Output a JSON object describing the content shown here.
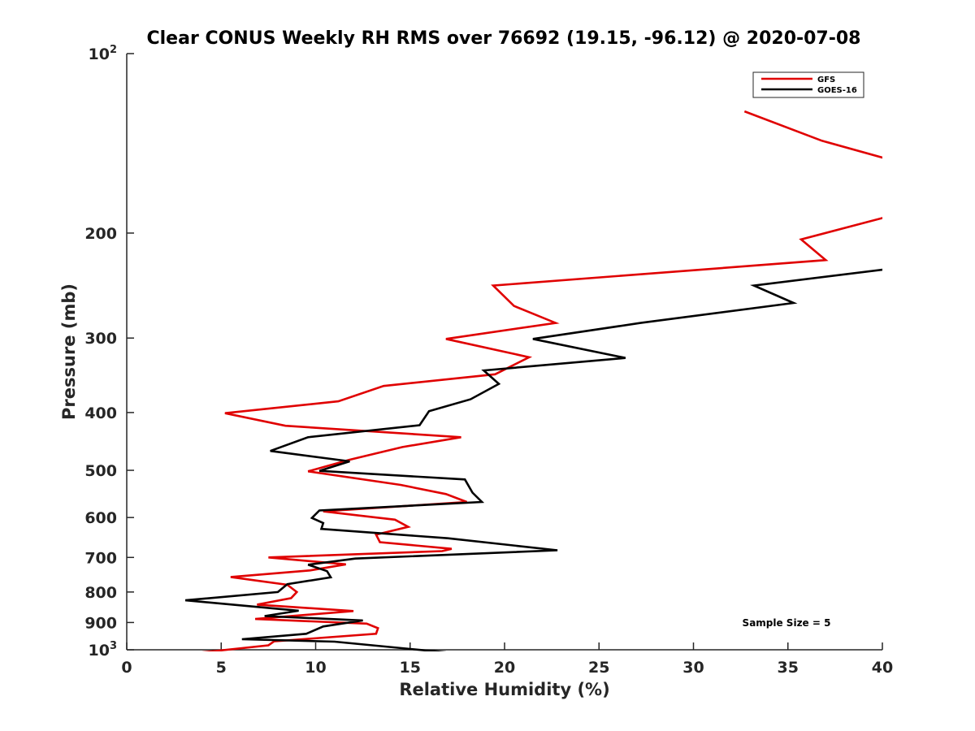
{
  "chart_data": {
    "type": "line",
    "title": "Clear CONUS Weekly RH RMS over 76692 (19.15, -96.12) @ 2020-07-08",
    "xlabel": "Relative Humidity (%)",
    "ylabel": "Pressure (mb)",
    "xlim": [
      0,
      40
    ],
    "ylim": [
      100,
      1000
    ],
    "yscale": "log",
    "y_direction": "reverse",
    "x_ticks": [
      0,
      5,
      10,
      15,
      20,
      25,
      30,
      35,
      40
    ],
    "x_tick_labels": [
      "0",
      "5",
      "10",
      "15",
      "20",
      "25",
      "30",
      "35",
      "40"
    ],
    "y_ticks": [
      100,
      200,
      300,
      400,
      500,
      600,
      700,
      800,
      900,
      1000
    ],
    "y_tick_labels": [
      {
        "base": "10",
        "exp": "2"
      },
      {
        "base": "200",
        "exp": ""
      },
      {
        "base": "300",
        "exp": ""
      },
      {
        "base": "400",
        "exp": ""
      },
      {
        "base": "500",
        "exp": ""
      },
      {
        "base": "600",
        "exp": ""
      },
      {
        "base": "700",
        "exp": ""
      },
      {
        "base": "800",
        "exp": ""
      },
      {
        "base": "900",
        "exp": ""
      },
      {
        "base": "10",
        "exp": "3"
      }
    ],
    "legend_position": "top-right",
    "annotation": "Sample Size = 5",
    "series": [
      {
        "name": "GFS",
        "color": "#e00000",
        "points": [
          [
            32.7,
            125
          ],
          [
            36.8,
            140
          ],
          [
            40.2,
            150
          ],
          [
            40.2,
            188
          ],
          [
            35.7,
            205
          ],
          [
            37.0,
            222
          ],
          [
            19.4,
            245
          ],
          [
            20.5,
            265
          ],
          [
            22.7,
            283
          ],
          [
            16.9,
            301
          ],
          [
            21.3,
            323
          ],
          [
            19.5,
            345
          ],
          [
            13.6,
            361
          ],
          [
            11.2,
            383
          ],
          [
            5.2,
            401
          ],
          [
            8.4,
            421
          ],
          [
            17.7,
            440
          ],
          [
            14.6,
            457
          ],
          [
            11.8,
            480
          ],
          [
            9.6,
            502
          ],
          [
            14.5,
            529
          ],
          [
            16.9,
            548
          ],
          [
            18.0,
            565
          ],
          [
            10.4,
            586
          ],
          [
            14.2,
            605
          ],
          [
            14.9,
            622
          ],
          [
            13.2,
            641
          ],
          [
            13.4,
            660
          ],
          [
            17.2,
            677
          ],
          [
            16.7,
            683
          ],
          [
            7.5,
            700
          ],
          [
            11.6,
            719
          ],
          [
            9.7,
            736
          ],
          [
            5.5,
            755
          ],
          [
            8.5,
            778
          ],
          [
            9.0,
            800
          ],
          [
            8.7,
            819
          ],
          [
            6.9,
            840
          ],
          [
            12.0,
            861
          ],
          [
            6.8,
            888
          ],
          [
            12.7,
            904
          ],
          [
            13.3,
            920
          ],
          [
            13.2,
            940
          ],
          [
            7.8,
            968
          ],
          [
            7.5,
            983
          ],
          [
            4.0,
            1010
          ]
        ]
      },
      {
        "name": "GOES-16",
        "color": "#000000",
        "points": [
          [
            40.2,
            230
          ],
          [
            33.2,
            245
          ],
          [
            35.3,
            262
          ],
          [
            27.2,
            283
          ],
          [
            21.5,
            301
          ],
          [
            26.4,
            324
          ],
          [
            18.9,
            340
          ],
          [
            19.7,
            358
          ],
          [
            18.2,
            380
          ],
          [
            16.0,
            398
          ],
          [
            15.5,
            420
          ],
          [
            9.6,
            440
          ],
          [
            7.6,
            464
          ],
          [
            11.8,
            483
          ],
          [
            10.2,
            501
          ],
          [
            17.9,
            518
          ],
          [
            18.3,
            545
          ],
          [
            18.8,
            565
          ],
          [
            10.2,
            584
          ],
          [
            9.8,
            601
          ],
          [
            10.4,
            613
          ],
          [
            10.3,
            627
          ],
          [
            17.0,
            650
          ],
          [
            22.8,
            681
          ],
          [
            12.1,
            703
          ],
          [
            9.6,
            720
          ],
          [
            10.6,
            738
          ],
          [
            10.8,
            756
          ],
          [
            8.5,
            776
          ],
          [
            8.0,
            800
          ],
          [
            3.1,
            826
          ],
          [
            9.1,
            860
          ],
          [
            7.3,
            878
          ],
          [
            12.5,
            893
          ],
          [
            10.4,
            914
          ],
          [
            9.5,
            940
          ],
          [
            6.1,
            960
          ],
          [
            11.0,
            969
          ],
          [
            13.0,
            983
          ],
          [
            16.9,
            1010
          ]
        ]
      }
    ]
  }
}
